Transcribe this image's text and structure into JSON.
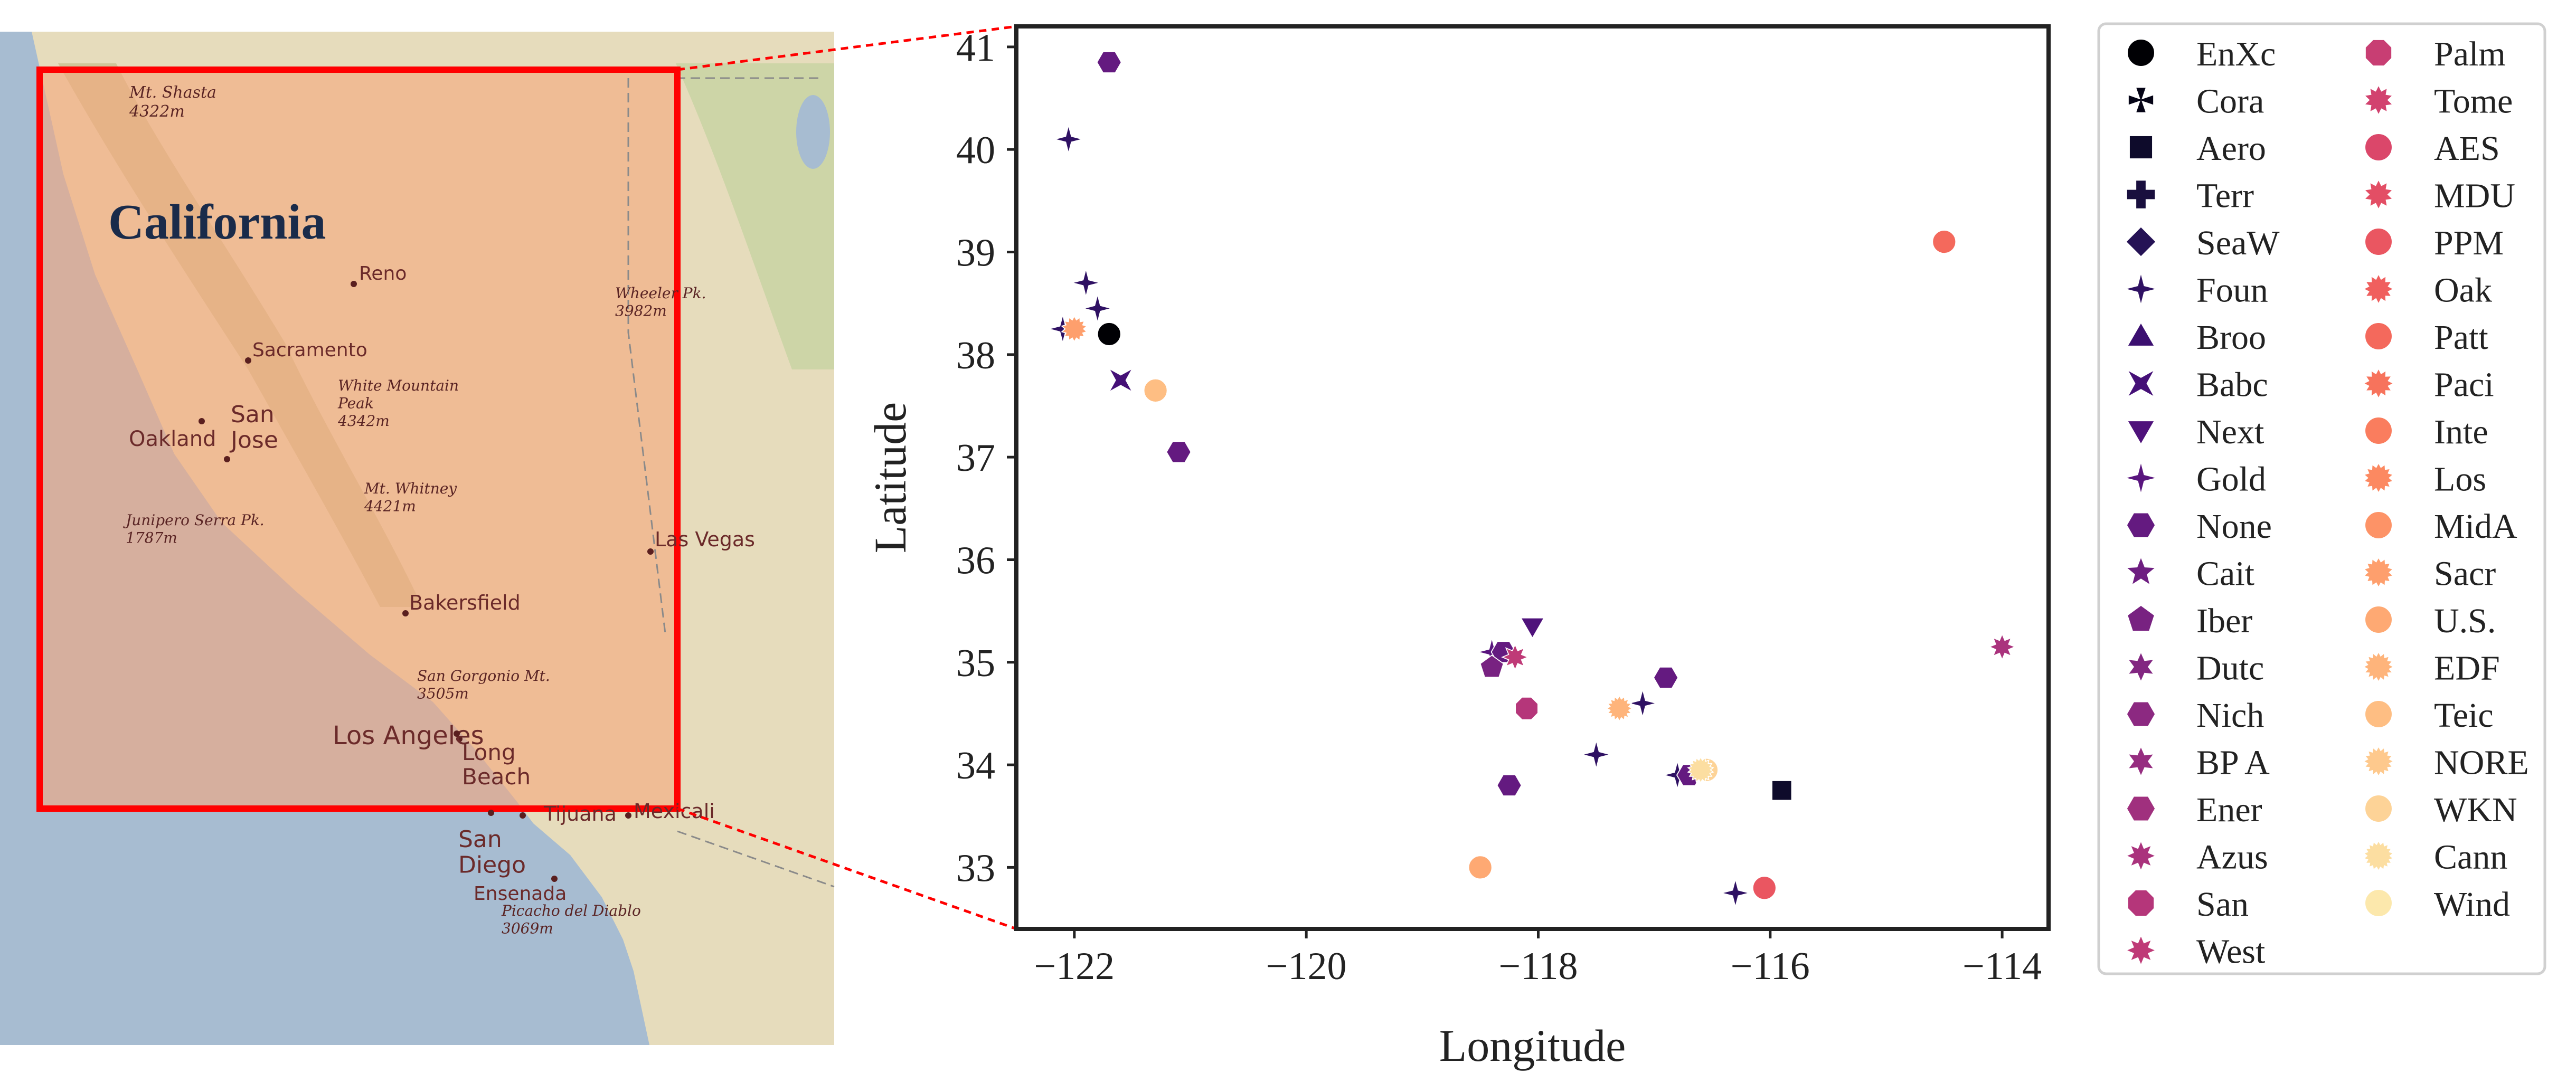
{
  "map": {
    "state_label": "California",
    "places": [
      {
        "name": "Reno"
      },
      {
        "name": "Sacramento"
      },
      {
        "name": "San\nJose"
      },
      {
        "name": "Oakland"
      },
      {
        "name": "Bakersfield"
      },
      {
        "name": "Los Angeles"
      },
      {
        "name": "Long\nBeach"
      },
      {
        "name": "San\nDiego"
      },
      {
        "name": "Tijuana"
      },
      {
        "name": "Mexicali"
      },
      {
        "name": "Ensenada"
      },
      {
        "name": "Las Vegas"
      }
    ],
    "peaks": [
      {
        "name": "Mt. Shasta\n4322m"
      },
      {
        "name": "Wheeler Pk.\n3982m"
      },
      {
        "name": "White Mountain\nPeak\n4342m"
      },
      {
        "name": "Mt. Whitney\n4421m"
      },
      {
        "name": "Junipero Serra Pk.\n1787m"
      },
      {
        "name": "San Gorgonio Mt.\n3505m"
      },
      {
        "name": "Picacho del Diablo\n3069m"
      }
    ],
    "colors": {
      "ocean": "#a7bcd1",
      "overlay": "#f5a67c",
      "box": "#ff0000",
      "land": "#e6dcbc"
    }
  },
  "chart_data": {
    "type": "scatter",
    "xlabel": "Longitude",
    "ylabel": "Latitude",
    "xlim": [
      -122.5,
      -113.6
    ],
    "ylim": [
      32.4,
      41.2
    ],
    "xticks": [
      -122,
      -120,
      -118,
      -116,
      -114
    ],
    "yticks": [
      33,
      34,
      35,
      36,
      37,
      38,
      39,
      40,
      41
    ],
    "xtick_labels": [
      "−122",
      "−120",
      "−118",
      "−116",
      "−114"
    ],
    "ytick_labels": [
      "33",
      "34",
      "35",
      "36",
      "37",
      "38",
      "39",
      "40",
      "41"
    ],
    "legend_placement": "outside right",
    "series": [
      {
        "name": "EnXc",
        "marker": "circle",
        "color": "#000004",
        "points": [
          [
            -121.7,
            38.2
          ]
        ]
      },
      {
        "name": "Cora",
        "marker": "x",
        "color": "#050416",
        "points": []
      },
      {
        "name": "Aero",
        "marker": "square",
        "color": "#0e0b2b",
        "points": [
          [
            -115.9,
            33.75
          ]
        ]
      },
      {
        "name": "Terr",
        "marker": "plus",
        "color": "#190f3e",
        "points": []
      },
      {
        "name": "SeaW",
        "marker": "diamond",
        "color": "#251255",
        "points": []
      },
      {
        "name": "Foun",
        "marker": "star4",
        "color": "#2f1163",
        "points": [
          [
            -122.05,
            40.1
          ],
          [
            -121.9,
            38.7
          ],
          [
            -121.8,
            38.45
          ],
          [
            -122.1,
            38.25
          ],
          [
            -117.5,
            34.1
          ],
          [
            -117.1,
            34.6
          ],
          [
            -117.3,
            34.55
          ],
          [
            -116.3,
            32.75
          ],
          [
            -116.8,
            33.9
          ]
        ]
      },
      {
        "name": "Broo",
        "marker": "triangle",
        "color": "#3b0f70",
        "points": []
      },
      {
        "name": "Babc",
        "marker": "bowtie",
        "color": "#451077",
        "points": [
          [
            -121.6,
            37.75
          ]
        ]
      },
      {
        "name": "Next",
        "marker": "triangle-down",
        "color": "#4f127b",
        "points": [
          [
            -118.05,
            35.35
          ]
        ]
      },
      {
        "name": "Gold",
        "marker": "star4",
        "color": "#59157e",
        "points": [
          [
            -118.4,
            35.1
          ]
        ]
      },
      {
        "name": "None",
        "marker": "hexagon",
        "color": "#641a80",
        "points": [
          [
            -121.7,
            40.85
          ],
          [
            -121.1,
            37.05
          ],
          [
            -118.3,
            35.1
          ],
          [
            -116.9,
            34.85
          ],
          [
            -118.25,
            33.8
          ],
          [
            -116.7,
            33.9
          ]
        ]
      },
      {
        "name": "Cait",
        "marker": "star5",
        "color": "#6e1e81",
        "points": []
      },
      {
        "name": "Iber",
        "marker": "pentagon",
        "color": "#782281",
        "points": [
          [
            -118.4,
            34.95
          ]
        ]
      },
      {
        "name": "Dutc",
        "marker": "star6",
        "color": "#822681",
        "points": []
      },
      {
        "name": "Nich",
        "marker": "hexagon",
        "color": "#8c2981",
        "points": []
      },
      {
        "name": "BP A",
        "marker": "star6",
        "color": "#962d80",
        "points": []
      },
      {
        "name": "Ener",
        "marker": "hexagon",
        "color": "#a0307e",
        "points": []
      },
      {
        "name": "Azus",
        "marker": "star8",
        "color": "#aa337d",
        "points": [
          [
            -114,
            35.15
          ]
        ]
      },
      {
        "name": "San",
        "marker": "octagon",
        "color": "#b5367a",
        "points": [
          [
            -118.1,
            34.55
          ]
        ]
      },
      {
        "name": "West",
        "marker": "star8",
        "color": "#bf3a77",
        "points": [
          [
            -118.2,
            35.05
          ]
        ]
      },
      {
        "name": "Palm",
        "marker": "octagon",
        "color": "#c83e73",
        "points": []
      },
      {
        "name": "Tome",
        "marker": "star10",
        "color": "#d2426f",
        "points": []
      },
      {
        "name": "AES",
        "marker": "circle",
        "color": "#db476a",
        "points": []
      },
      {
        "name": "MDU",
        "marker": "star10",
        "color": "#e34e65",
        "points": []
      },
      {
        "name": "PPM",
        "marker": "circle",
        "color": "#ea5661",
        "points": [
          [
            -116.05,
            32.8
          ]
        ]
      },
      {
        "name": "Oak",
        "marker": "star12",
        "color": "#f05f5e",
        "points": []
      },
      {
        "name": "Patt",
        "marker": "circle",
        "color": "#f4695c",
        "points": [
          [
            -114.5,
            39.1
          ]
        ]
      },
      {
        "name": "Paci",
        "marker": "star12",
        "color": "#f7735c",
        "points": []
      },
      {
        "name": "Inte",
        "marker": "circle",
        "color": "#fa7d5e",
        "points": []
      },
      {
        "name": "Los",
        "marker": "star14",
        "color": "#fc8961",
        "points": []
      },
      {
        "name": "MidA",
        "marker": "circle",
        "color": "#fd9367",
        "points": []
      },
      {
        "name": "Sacr",
        "marker": "star14",
        "color": "#fe9f6d",
        "points": [
          [
            -122,
            38.25
          ]
        ]
      },
      {
        "name": "U.S.",
        "marker": "circle",
        "color": "#fea973",
        "points": [
          [
            -118.5,
            33
          ]
        ]
      },
      {
        "name": "EDF",
        "marker": "star16",
        "color": "#feb47b",
        "points": [
          [
            -117.3,
            34.55
          ]
        ]
      },
      {
        "name": "Teic",
        "marker": "circle",
        "color": "#febe83",
        "points": [
          [
            -121.3,
            37.65
          ]
        ]
      },
      {
        "name": "NORE",
        "marker": "star16",
        "color": "#fec98d",
        "points": []
      },
      {
        "name": "WKN",
        "marker": "circle",
        "color": "#fdd397",
        "points": [
          [
            -116.55,
            33.95
          ]
        ]
      },
      {
        "name": "Cann",
        "marker": "star18",
        "color": "#fcdea1",
        "points": [
          [
            -116.6,
            33.95
          ]
        ]
      },
      {
        "name": "Wind",
        "marker": "circle",
        "color": "#fce8ac",
        "points": []
      }
    ]
  }
}
